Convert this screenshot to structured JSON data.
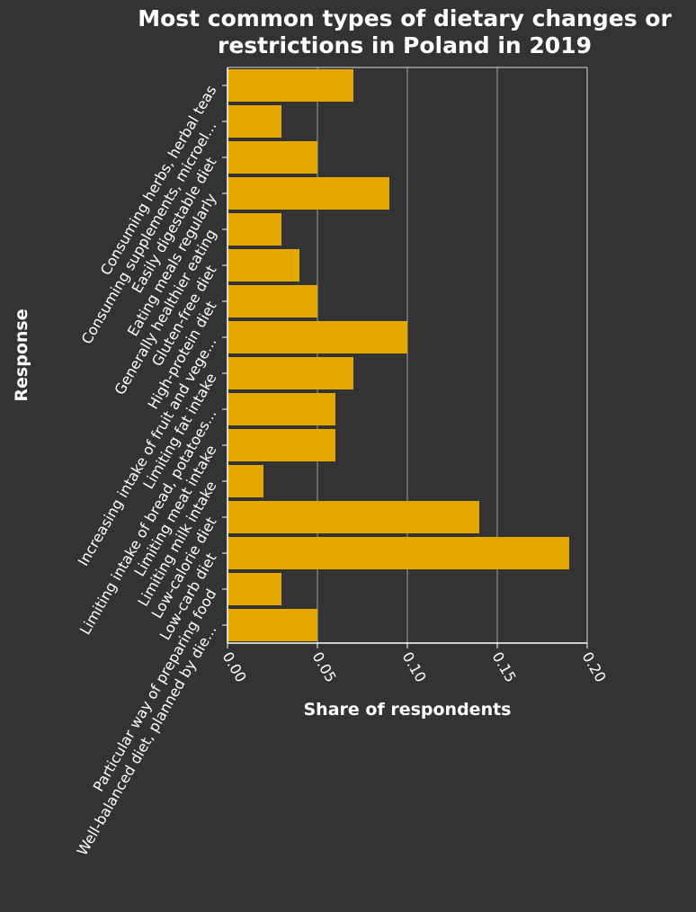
{
  "chart_data": {
    "type": "bar",
    "orientation": "horizontal",
    "title_line1": "Most common types of dietary changes or",
    "title_line2": "restrictions in Poland in 2019",
    "xlabel": "Share of respondents",
    "ylabel": "Response",
    "xlim": [
      0,
      0.2
    ],
    "xticks": [
      "0.00",
      "0.05",
      "0.10",
      "0.15",
      "0.20"
    ],
    "grid": "vertical",
    "bar_color": "#e5a800",
    "background_color": "#333333",
    "categories": [
      "Consuming herbs, herbal teas",
      "Consuming supplements, microel...",
      "Easily digestable diet",
      "Eating meals regularly",
      "Generally healthier eating",
      "Gluten-free diet",
      "High-protein diet",
      "Increasing intake of fruit and vege...",
      "Limiting fat intake",
      "Limiting intake of bread, potatoes...",
      "Limiting meat intake",
      "Limiting milk intake",
      "Low-calorie diet",
      "Low-carb diet",
      "Particular way of preparing food",
      "Well-balanced diet, planned by die..."
    ],
    "values": [
      0.07,
      0.03,
      0.05,
      0.09,
      0.03,
      0.04,
      0.05,
      0.1,
      0.07,
      0.06,
      0.06,
      0.02,
      0.14,
      0.19,
      0.03,
      0.05
    ]
  }
}
